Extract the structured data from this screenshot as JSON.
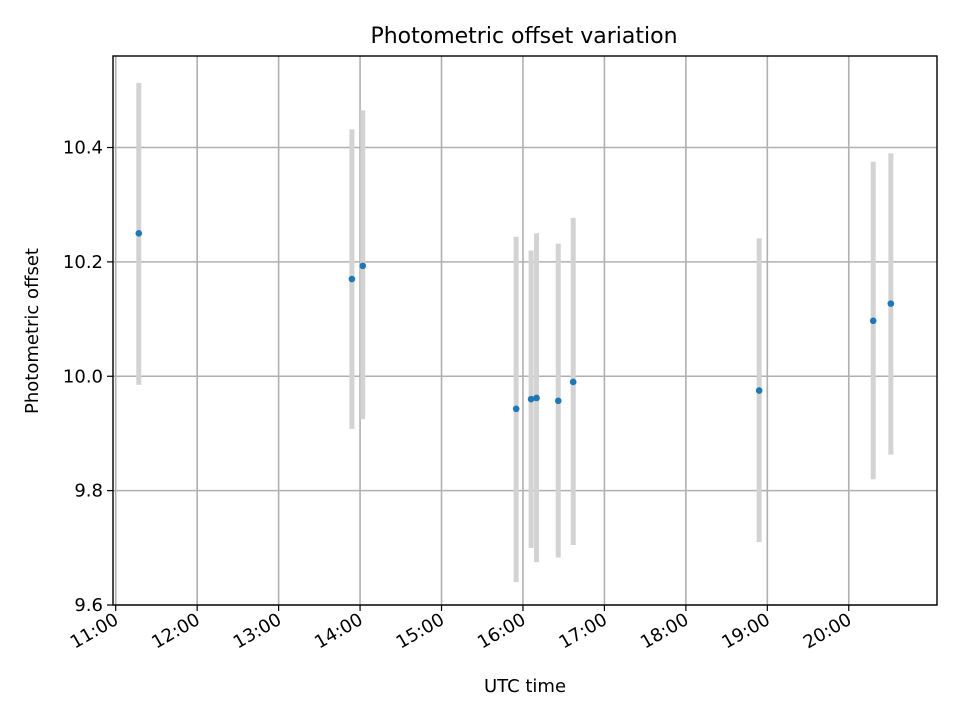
{
  "chart_data": {
    "type": "scatter",
    "title": "Photometric offset variation",
    "xlabel": "UTC time",
    "ylabel": "Photometric offset",
    "xlim": [
      "10:58",
      "21:05"
    ],
    "ylim": [
      9.6,
      10.56
    ],
    "grid": true,
    "x_ticks": [
      "11:00",
      "12:00",
      "13:00",
      "14:00",
      "15:00",
      "16:00",
      "17:00",
      "18:00",
      "19:00",
      "20:00"
    ],
    "y_ticks": [
      "9.6",
      "9.8",
      "10.0",
      "10.2",
      "10.4"
    ],
    "colors": {
      "points": "#1f77b4",
      "errorbars": "#d3d3d3",
      "grid": "#b0b0b0"
    },
    "series": [
      {
        "x": [
          "11:17",
          "13:54",
          "14:02",
          "15:55",
          "16:06",
          "16:10",
          "16:26",
          "16:37",
          "18:54",
          "20:18",
          "20:31"
        ],
        "y": [
          10.25,
          10.17,
          10.193,
          9.943,
          9.96,
          9.962,
          9.957,
          9.99,
          9.975,
          10.097,
          10.127
        ],
        "yerr_low": [
          9.985,
          9.908,
          9.925,
          9.64,
          9.7,
          9.675,
          9.683,
          9.705,
          9.71,
          9.82,
          9.863
        ],
        "yerr_high": [
          10.513,
          10.432,
          10.465,
          10.244,
          10.22,
          10.25,
          10.232,
          10.277,
          10.241,
          10.375,
          10.39
        ]
      }
    ]
  }
}
